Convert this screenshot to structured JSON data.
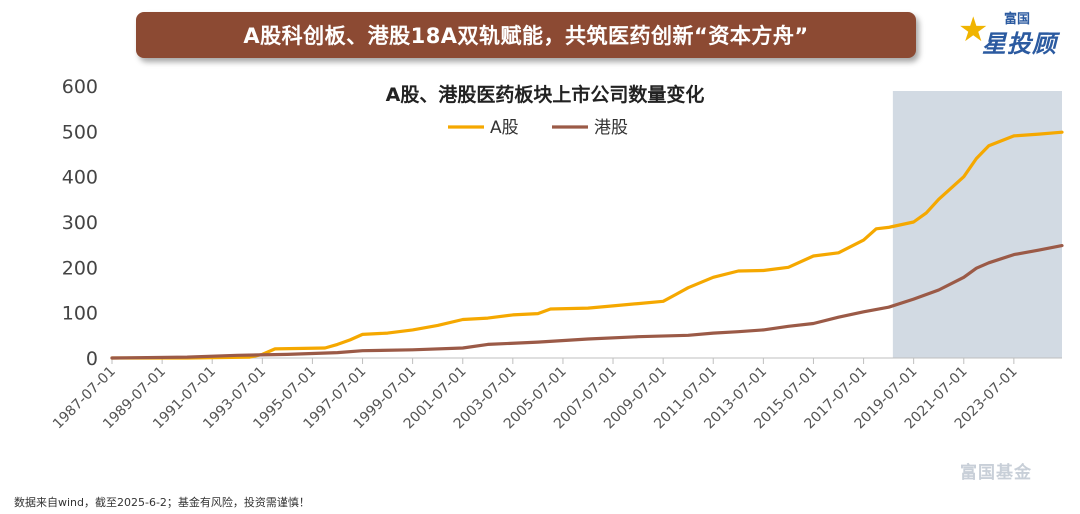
{
  "banner": {
    "title": "A股科创板、港股18A双轨赋能，共筑医药创新“资本方舟”"
  },
  "brand": {
    "top": "富国",
    "main": "星投顾"
  },
  "watermark": "富国基金",
  "footnote": "数据来自wind，截至2025-6-2；基金有风险，投资需谨慎！",
  "colors": {
    "a_share": "#f5a800",
    "hk_share": "#9b5a47",
    "highlight": "#d2dae3",
    "banner": "#8c4a33"
  },
  "chart_data": {
    "type": "line",
    "title": "A股、港股医药板块上市公司数量变化",
    "xlabel": "",
    "ylabel": "",
    "ylim": [
      0,
      600
    ],
    "yticks": [
      0,
      100,
      200,
      300,
      400,
      500,
      600
    ],
    "xlim": [
      "1987-07-01",
      "2025-06-02"
    ],
    "xticks": [
      "1987-07-01",
      "1989-07-01",
      "1991-07-01",
      "1993-07-01",
      "1995-07-01",
      "1997-07-01",
      "1999-07-01",
      "2001-07-01",
      "2003-07-01",
      "2005-07-01",
      "2007-07-01",
      "2009-07-01",
      "2011-07-01",
      "2013-07-01",
      "2015-07-01",
      "2017-07-01",
      "2019-07-01",
      "2021-07-01",
      "2023-07-01"
    ],
    "legend": "top-center",
    "highlight_range": [
      "2018-09-01",
      "2025-06-02"
    ],
    "series": [
      {
        "name": "A股",
        "color": "#f5a800",
        "points": [
          [
            "1987-07-01",
            0
          ],
          [
            "1990-07-01",
            0
          ],
          [
            "1993-01-01",
            2
          ],
          [
            "1993-07-01",
            8
          ],
          [
            "1994-01-01",
            20
          ],
          [
            "1996-01-01",
            22
          ],
          [
            "1996-07-01",
            30
          ],
          [
            "1997-01-01",
            40
          ],
          [
            "1997-07-01",
            52
          ],
          [
            "1998-07-01",
            55
          ],
          [
            "1999-07-01",
            62
          ],
          [
            "2000-07-01",
            72
          ],
          [
            "2001-07-01",
            85
          ],
          [
            "2002-07-01",
            88
          ],
          [
            "2003-07-01",
            95
          ],
          [
            "2004-07-01",
            98
          ],
          [
            "2005-01-01",
            108
          ],
          [
            "2006-07-01",
            110
          ],
          [
            "2007-07-01",
            115
          ],
          [
            "2008-07-01",
            120
          ],
          [
            "2009-07-01",
            125
          ],
          [
            "2010-01-01",
            140
          ],
          [
            "2010-07-01",
            155
          ],
          [
            "2011-07-01",
            178
          ],
          [
            "2012-07-01",
            192
          ],
          [
            "2013-07-01",
            193
          ],
          [
            "2014-07-01",
            200
          ],
          [
            "2015-07-01",
            225
          ],
          [
            "2016-07-01",
            232
          ],
          [
            "2017-07-01",
            260
          ],
          [
            "2018-01-01",
            285
          ],
          [
            "2018-07-01",
            288
          ],
          [
            "2019-07-01",
            300
          ],
          [
            "2020-01-01",
            320
          ],
          [
            "2020-07-01",
            350
          ],
          [
            "2021-07-01",
            400
          ],
          [
            "2022-01-01",
            440
          ],
          [
            "2022-07-01",
            468
          ],
          [
            "2023-07-01",
            490
          ],
          [
            "2024-07-01",
            494
          ],
          [
            "2025-06-02",
            498
          ]
        ]
      },
      {
        "name": "港股",
        "color": "#9b5a47",
        "points": [
          [
            "1987-07-01",
            0
          ],
          [
            "1990-07-01",
            2
          ],
          [
            "1992-07-01",
            6
          ],
          [
            "1994-07-01",
            8
          ],
          [
            "1996-07-01",
            12
          ],
          [
            "1997-07-01",
            16
          ],
          [
            "1999-07-01",
            18
          ],
          [
            "2001-07-01",
            22
          ],
          [
            "2002-07-01",
            30
          ],
          [
            "2004-07-01",
            35
          ],
          [
            "2006-07-01",
            42
          ],
          [
            "2008-07-01",
            47
          ],
          [
            "2010-07-01",
            50
          ],
          [
            "2011-07-01",
            55
          ],
          [
            "2012-07-01",
            58
          ],
          [
            "2013-07-01",
            62
          ],
          [
            "2014-07-01",
            70
          ],
          [
            "2015-07-01",
            76
          ],
          [
            "2016-07-01",
            90
          ],
          [
            "2017-07-01",
            102
          ],
          [
            "2018-07-01",
            112
          ],
          [
            "2019-07-01",
            130
          ],
          [
            "2020-07-01",
            150
          ],
          [
            "2021-07-01",
            178
          ],
          [
            "2022-01-01",
            198
          ],
          [
            "2022-07-01",
            210
          ],
          [
            "2023-07-01",
            228
          ],
          [
            "2024-07-01",
            238
          ],
          [
            "2025-06-02",
            248
          ]
        ]
      }
    ]
  }
}
